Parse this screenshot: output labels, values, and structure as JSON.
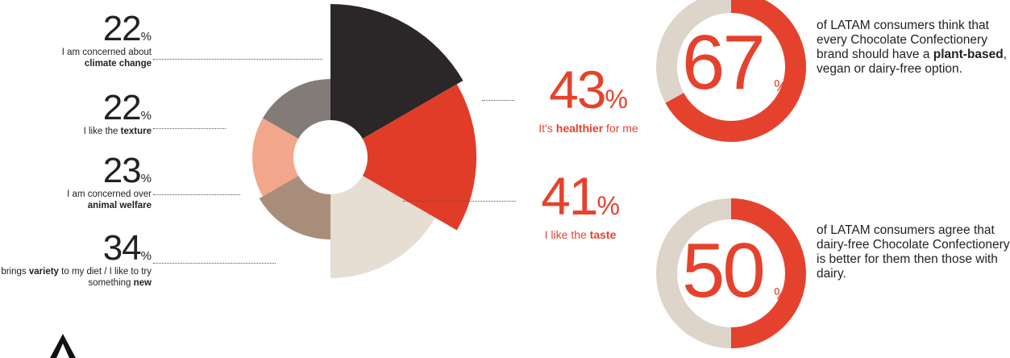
{
  "chart_data": {
    "type": "pie",
    "variant": "polar-area donut",
    "slices": [
      {
        "value": 43,
        "label_pre": "It’s ",
        "label_bold": "healthier",
        "label_post": " for me",
        "color": "#2b2627"
      },
      {
        "value": 41,
        "label_pre": "I like the ",
        "label_bold": "taste",
        "label_post": "",
        "color": "#e03c28"
      },
      {
        "value": 34,
        "label_pre": "It brings ",
        "label_bold": "variety",
        "label_post": " to my diet / I like to try something new",
        "color": "#e6ddd3"
      },
      {
        "value": 23,
        "label_pre": "I am concerned over ",
        "label_bold": "animal welfare",
        "label_post": "",
        "color": "#a98d7b"
      },
      {
        "value": 22,
        "label_pre": "I like the ",
        "label_bold": "texture",
        "label_post": "",
        "color": "#f2a68a"
      },
      {
        "value": 22,
        "label_pre": "I am concerned about ",
        "label_bold": "climate change",
        "label_post": "",
        "color": "#837b78"
      }
    ]
  },
  "stats_left": [
    {
      "num": "22",
      "pct": "%",
      "pre": "I am concerned about",
      "bold": "climate change",
      "post": ""
    },
    {
      "num": "22",
      "pct": "%",
      "pre": "I like the",
      "bold": "texture",
      "post": ""
    },
    {
      "num": "23",
      "pct": "%",
      "pre": "I am concerned over",
      "bold": "animal welfare",
      "post": ""
    },
    {
      "num": "34",
      "pct": "%",
      "pre": "It brings",
      "bold": "variety",
      "mid": "to my diet / I like to try something",
      "bold2": "new"
    }
  ],
  "stats_red": [
    {
      "num": "43",
      "pct": "%",
      "pre": "It’s",
      "bold": "healthier",
      "post": "for me"
    },
    {
      "num": "41",
      "pct": "%",
      "pre": "I like the",
      "bold": "taste",
      "post": ""
    }
  ],
  "rings": [
    {
      "value": 67,
      "num": "67",
      "pct": "%",
      "line1": "of LATAM consumers think that every Chocolate Confectionery brand should have a",
      "bold": "plant-based",
      "line2": ", vegan or dairy-free option."
    },
    {
      "value": 50,
      "num": "50",
      "pct": "%",
      "line1": "of LATAM consumers agree that dairy-free Chocolate Confectionery is better for them then those with dairy.",
      "bold": "",
      "line2": ""
    }
  ],
  "colors": {
    "accent": "#e5422d",
    "ring_track": "#ddd4ca",
    "dark": "#2b2627"
  },
  "logo_icon": "triangle-logo-icon"
}
